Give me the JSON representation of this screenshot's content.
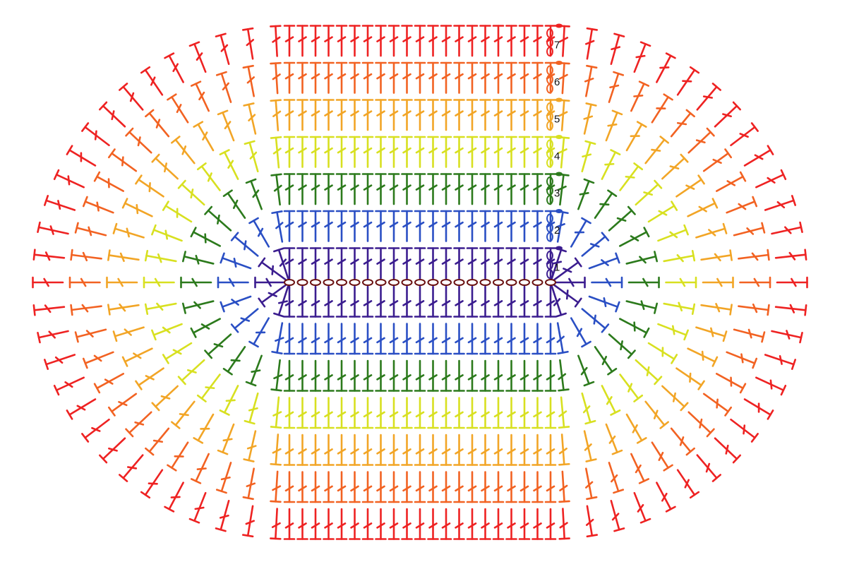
{
  "rounds": [
    {
      "label": "1",
      "color": "#3b1d8f"
    },
    {
      "label": "2",
      "color": "#2a4fc4"
    },
    {
      "label": "3",
      "color": "#2c7a1c"
    },
    {
      "label": "4",
      "color": "#d8e020"
    },
    {
      "label": "5",
      "color": "#f2a526"
    },
    {
      "label": "6",
      "color": "#f26222"
    },
    {
      "label": "7",
      "color": "#ee2222"
    }
  ]
}
